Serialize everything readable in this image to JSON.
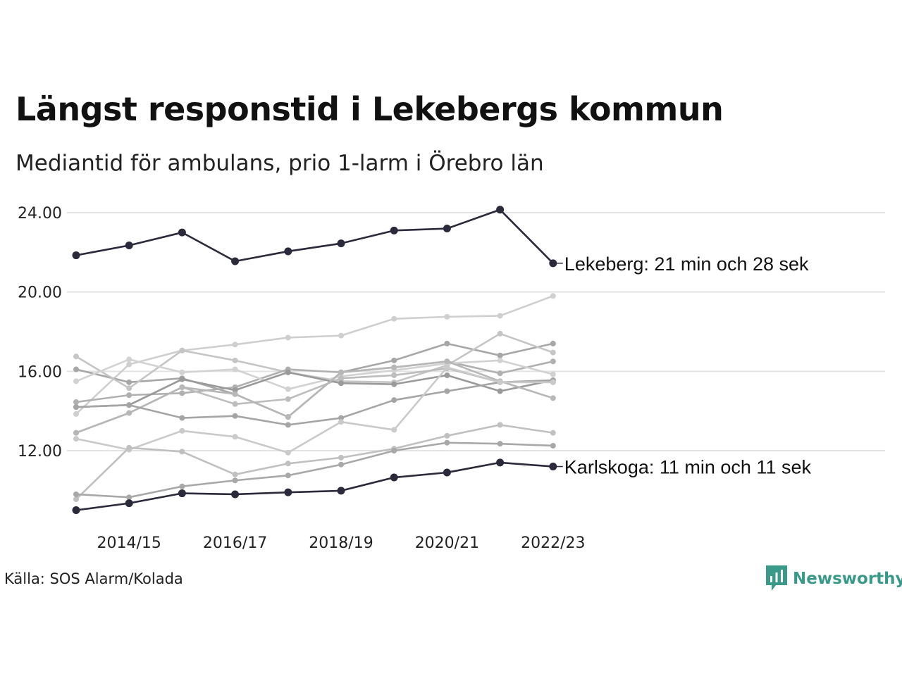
{
  "header": {
    "title": "Längst responstid i Lekebergs kommun",
    "subtitle": "Mediantid för ambulans, prio 1-larm i Örebro län"
  },
  "footer": {
    "source": "Källa: SOS Alarm/Kolada",
    "logo_text": "Newsworthy",
    "logo_color": "#3a9a8a"
  },
  "chart_data": {
    "type": "line",
    "x": [
      "2013/14",
      "2014/15",
      "2015/16",
      "2016/17",
      "2017/18",
      "2018/19",
      "2019/20",
      "2020/21",
      "2021/22",
      "2022/23"
    ],
    "x_ticks": [
      "2014/15",
      "2016/17",
      "2018/19",
      "2020/21",
      "2022/23"
    ],
    "y_ticks": [
      "24.00",
      "20.00",
      "16.00",
      "12.00"
    ],
    "ylim": [
      8.2,
      24.8
    ],
    "grid": true,
    "highlight_color": "#2b2a3a",
    "series": [
      {
        "label": "Lekeberg: 21 min och 28 sek",
        "highlight": true,
        "values": [
          21.85,
          22.35,
          23.0,
          21.55,
          22.05,
          22.45,
          23.1,
          23.2,
          24.15,
          21.45
        ]
      },
      {
        "label": "Karlskoga: 11 min och 11 sek",
        "highlight": true,
        "values": [
          9.0,
          9.35,
          9.85,
          9.8,
          9.9,
          9.98,
          10.65,
          10.9,
          11.4,
          11.2
        ]
      },
      {
        "color": "#cfcfcf",
        "values": [
          13.85,
          16.35,
          17.05,
          17.35,
          17.7,
          17.8,
          18.65,
          18.75,
          18.8,
          19.8
        ]
      },
      {
        "color": "#a7a7a7",
        "values": [
          16.1,
          15.45,
          15.65,
          14.85,
          13.7,
          15.95,
          16.55,
          17.4,
          16.8,
          17.4
        ]
      },
      {
        "color": "#c5c5c5",
        "values": [
          16.75,
          15.15,
          17.05,
          16.55,
          15.95,
          15.5,
          15.45,
          16.3,
          17.9,
          16.95
        ]
      },
      {
        "color": "#b0b0b0",
        "values": [
          14.45,
          14.8,
          14.9,
          15.2,
          16.1,
          15.95,
          16.2,
          16.5,
          15.9,
          16.5
        ]
      },
      {
        "color": "#d2d2d2",
        "values": [
          15.5,
          16.6,
          15.95,
          16.1,
          15.1,
          15.75,
          16.05,
          16.4,
          16.55,
          15.85
        ]
      },
      {
        "color": "#bdbdbd",
        "values": [
          12.9,
          13.9,
          15.2,
          14.35,
          14.6,
          15.65,
          15.8,
          16.15,
          15.45,
          15.45
        ]
      },
      {
        "color": "#9a9a9a",
        "values": [
          14.2,
          14.3,
          15.6,
          15.05,
          15.95,
          15.4,
          15.35,
          15.8,
          15.0,
          15.55
        ]
      },
      {
        "color": "#b7b7b7",
        "values": [
          12.9,
          13.9,
          15.2,
          14.85,
          13.7,
          15.95,
          16.2,
          16.5,
          15.5,
          14.65
        ]
      },
      {
        "color": "#a5a5a5",
        "values": [
          14.2,
          14.3,
          13.65,
          13.75,
          13.3,
          13.65,
          14.55,
          15.0,
          15.45,
          15.55
        ]
      },
      {
        "color": "#cacaca",
        "values": [
          12.6,
          12.05,
          13.0,
          12.7,
          11.9,
          13.45,
          13.05,
          16.2,
          15.45,
          15.45
        ]
      },
      {
        "color": "#c0c0c0",
        "values": [
          9.55,
          12.15,
          11.95,
          10.8,
          11.35,
          11.65,
          12.1,
          12.75,
          13.3,
          12.9
        ]
      },
      {
        "color": "#a8a8a8",
        "values": [
          9.8,
          9.65,
          10.2,
          10.5,
          10.75,
          11.3,
          12.0,
          12.4,
          12.35,
          12.25
        ]
      }
    ]
  }
}
